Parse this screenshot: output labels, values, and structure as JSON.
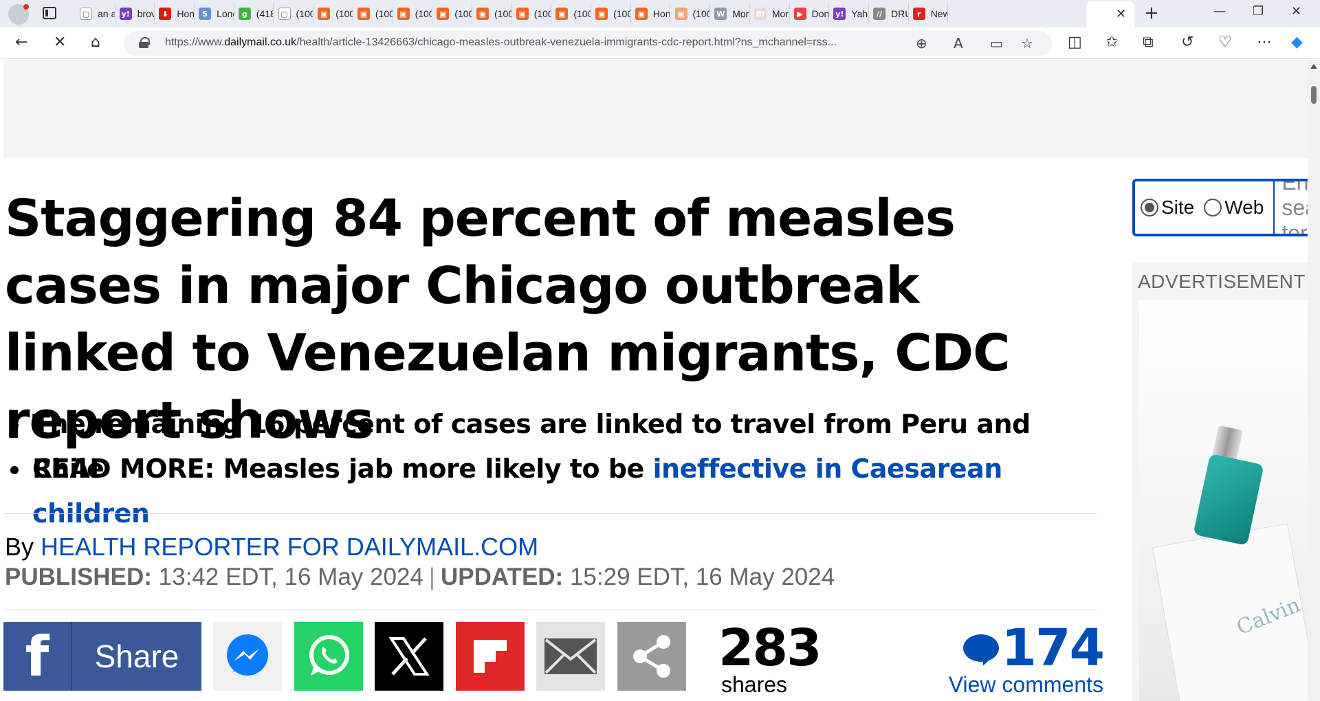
{
  "browser": {
    "tabs": [
      {
        "title": "an a",
        "fav_color": "#ffffff",
        "fav_glyph": "▢"
      },
      {
        "title": "brov",
        "fav_color": "#7b3fbf",
        "fav_glyph": "y!"
      },
      {
        "title": "Hon",
        "fav_color": "#d81e05",
        "fav_glyph": "⬇"
      },
      {
        "title": "Long",
        "fav_color": "#6b8fd6",
        "fav_glyph": "5"
      },
      {
        "title": "(418",
        "fav_color": "#40b440",
        "fav_glyph": "g"
      },
      {
        "title": "(100",
        "fav_color": "#ffffff",
        "fav_glyph": "▢"
      },
      {
        "title": "(100",
        "fav_color": "#f26522",
        "fav_glyph": "▣"
      },
      {
        "title": "(100",
        "fav_color": "#f26522",
        "fav_glyph": "▣"
      },
      {
        "title": "(100",
        "fav_color": "#f26522",
        "fav_glyph": "▣"
      },
      {
        "title": "(100",
        "fav_color": "#f26522",
        "fav_glyph": "▣"
      },
      {
        "title": "(100",
        "fav_color": "#f26522",
        "fav_glyph": "▣"
      },
      {
        "title": "(100",
        "fav_color": "#f26522",
        "fav_glyph": "▣"
      },
      {
        "title": "(100",
        "fav_color": "#f26522",
        "fav_glyph": "▣"
      },
      {
        "title": "(100",
        "fav_color": "#f26522",
        "fav_glyph": "▣"
      },
      {
        "title": "Hon",
        "fav_color": "#f26522",
        "fav_glyph": "▣"
      },
      {
        "title": "(100",
        "fav_color": "#f4a27a",
        "fav_glyph": "▣"
      },
      {
        "title": "Mor",
        "fav_color": "#8e9aa8",
        "fav_glyph": "W"
      },
      {
        "title": "Mor",
        "fav_color": "#e8d8d8",
        "fav_glyph": "BI"
      },
      {
        "title": "Don",
        "fav_color": "#e8423f",
        "fav_glyph": "▶"
      },
      {
        "title": "Yah",
        "fav_color": "#7b3fbf",
        "fav_glyph": "y!"
      },
      {
        "title": "DRU",
        "fav_color": "#888888",
        "fav_glyph": "//"
      },
      {
        "title": "New",
        "fav_color": "#e0231e",
        "fav_glyph": "r"
      }
    ],
    "active_tab_title": "",
    "url_prefix": "https://www.",
    "url_domain": "dailymail.co.uk",
    "url_path": "/health/article-13426663/chicago-measles-outbreak-venezuela-immigrants-cdc-report.html?ns_mchannel=rss..."
  },
  "article": {
    "headline": "Staggering 84 percent of measles cases in major Chicago outbreak linked to Venezuelan migrants, CDC report shows",
    "bullets": [
      {
        "text": "The remaining 16 percent of cases are linked to travel from Peru and Chile",
        "link": ""
      },
      {
        "text": "READ MORE: Measles jab more likely to be ",
        "link": "ineffective in Caesarean children"
      }
    ],
    "byline_prefix": "By ",
    "author": "HEALTH REPORTER FOR DAILYMAIL.COM",
    "published_label": "PUBLISHED:",
    "published": "13:42 EDT, 16 May 2024",
    "separator": "|",
    "updated_label": "UPDATED:",
    "updated": "15:29 EDT, 16 May 2024"
  },
  "share": {
    "facebook_label": "Share",
    "share_count": "283",
    "share_count_label": "shares",
    "comment_count": "174",
    "comment_label": "View comments"
  },
  "sidebar": {
    "search_site": "Site",
    "search_web": "Web",
    "search_placeholder": "Enter search term",
    "ad_label": "ADVERTISEMENT",
    "ad_brand": "Calvin"
  },
  "colors": {
    "link_blue": "#004db3",
    "facebook": "#3b5998",
    "whatsapp": "#25d366",
    "flipboard": "#e12828"
  }
}
